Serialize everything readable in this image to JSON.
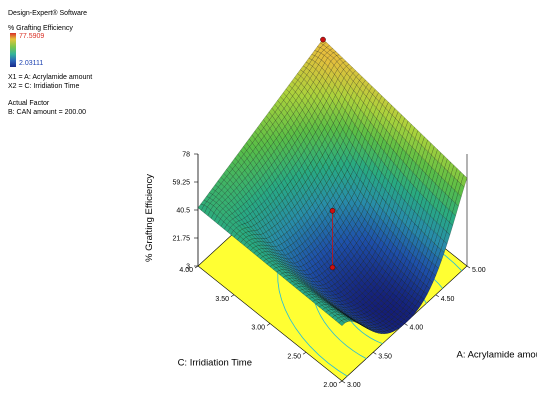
{
  "legend": {
    "software": "Design-Expert® Software",
    "response_name": "% Grafting Efficiency",
    "max_label": "77.5909",
    "min_label": "2.03111",
    "x1": "X1 = A: Acrylamide amount",
    "x2": "X2 = C: Irridiation Time",
    "actual_factor_title": "Actual Factor",
    "actual_factor": "B: CAN amount = 200.00"
  },
  "chart_data": {
    "type": "surface3d",
    "title": "",
    "zlabel": "% Grafting Efficiency",
    "xlabel": "A: Acrylamide amount",
    "ylabel": "C: Irridiation Time",
    "z_ticks": [
      "3",
      "21.75",
      "40.5",
      "59.25",
      "78"
    ],
    "x_ticks": [
      "3.00",
      "3.50",
      "4.00",
      "4.50",
      "5.00"
    ],
    "y_ticks": [
      "2.00",
      "2.50",
      "3.00",
      "3.50",
      "4.00"
    ],
    "x_range": [
      3,
      5
    ],
    "y_range": [
      2,
      4
    ],
    "z_range": [
      3,
      78
    ],
    "surface_min": 2.03111,
    "surface_max": 77.5909,
    "corner_values": {
      "x3_y4": 42,
      "x5_y4": 78,
      "x3_y2": 40,
      "x5_y2": 62
    },
    "design_points": [
      {
        "x": 5,
        "y": 4,
        "z": 77.59
      },
      {
        "x": 4,
        "y": 3,
        "z": 40
      },
      {
        "x": 4,
        "y": 3,
        "z": 2.03
      }
    ],
    "colors": {
      "floor": "#ffff33",
      "contour": "#22bbdd",
      "point": "#cc1111"
    }
  }
}
